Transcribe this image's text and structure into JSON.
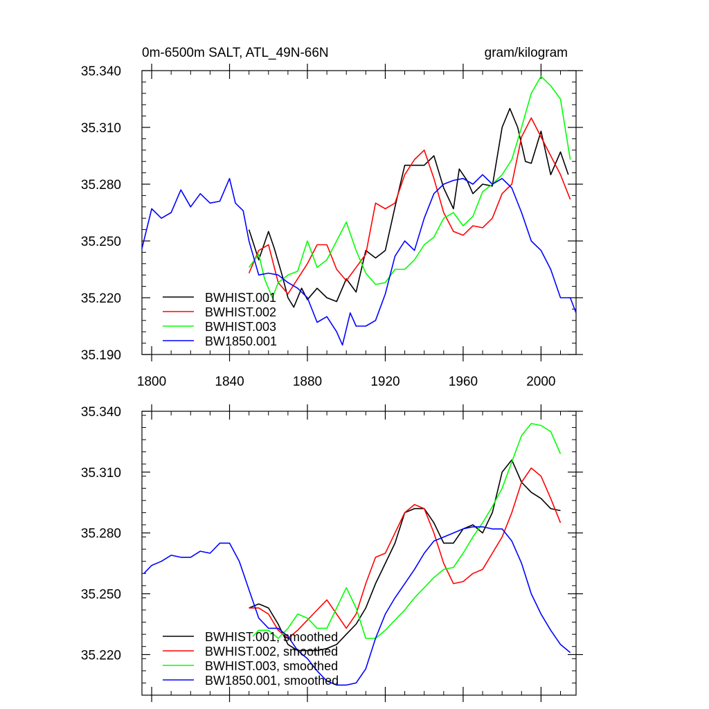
{
  "chart_data": [
    {
      "type": "line",
      "title": "0m-6500m SALT, ATL_49N-66N",
      "units": "gram/kilogram",
      "xlim": [
        1795,
        2018
      ],
      "ylim": [
        35.19,
        35.34
      ],
      "xticks": [
        1800,
        1840,
        1880,
        1920,
        1960,
        2000
      ],
      "xtick_labels": [
        "1800",
        "1840",
        "1880",
        "1920",
        "1960",
        "2000"
      ],
      "yticks": [
        35.19,
        35.22,
        35.25,
        35.28,
        35.31,
        35.34
      ],
      "ytick_labels": [
        "35.190",
        "35.220",
        "35.250",
        "35.280",
        "35.310",
        "35.340"
      ],
      "legend_position": "bottom-left",
      "series": [
        {
          "name": "BWHIST.001",
          "color": "#000000",
          "x": [
            1850,
            1855,
            1860,
            1863,
            1867,
            1870,
            1873,
            1877,
            1880,
            1885,
            1890,
            1895,
            1900,
            1905,
            1910,
            1915,
            1920,
            1925,
            1930,
            1935,
            1940,
            1945,
            1950,
            1955,
            1958,
            1962,
            1965,
            1970,
            1975,
            1980,
            1984,
            1988,
            1992,
            1995,
            2000,
            2005,
            2010,
            2014
          ],
          "y": [
            35.256,
            35.24,
            35.255,
            35.246,
            35.232,
            35.22,
            35.215,
            35.225,
            35.219,
            35.225,
            35.22,
            35.218,
            35.23,
            35.223,
            35.245,
            35.241,
            35.245,
            35.268,
            35.29,
            35.29,
            35.29,
            35.295,
            35.278,
            35.267,
            35.288,
            35.282,
            35.275,
            35.28,
            35.279,
            35.31,
            35.32,
            35.31,
            35.292,
            35.291,
            35.308,
            35.285,
            35.297,
            35.285
          ]
        },
        {
          "name": "BWHIST.002",
          "color": "#ff0000",
          "x": [
            1850,
            1855,
            1860,
            1865,
            1870,
            1875,
            1880,
            1885,
            1890,
            1895,
            1900,
            1905,
            1910,
            1915,
            1920,
            1925,
            1930,
            1935,
            1940,
            1945,
            1950,
            1955,
            1960,
            1965,
            1970,
            1975,
            1980,
            1985,
            1990,
            1995,
            2000,
            2005,
            2010,
            2015
          ],
          "y": [
            35.233,
            35.245,
            35.248,
            35.228,
            35.222,
            35.23,
            35.238,
            35.248,
            35.248,
            35.235,
            35.229,
            35.236,
            35.243,
            35.27,
            35.267,
            35.27,
            35.285,
            35.293,
            35.298,
            35.283,
            35.265,
            35.255,
            35.253,
            35.258,
            35.257,
            35.262,
            35.275,
            35.28,
            35.305,
            35.315,
            35.305,
            35.295,
            35.285,
            35.272
          ]
        },
        {
          "name": "BWHIST.003",
          "color": "#00ff00",
          "x": [
            1850,
            1855,
            1858,
            1862,
            1865,
            1870,
            1875,
            1880,
            1885,
            1890,
            1895,
            1900,
            1905,
            1910,
            1915,
            1920,
            1925,
            1930,
            1935,
            1940,
            1945,
            1950,
            1955,
            1960,
            1965,
            1970,
            1975,
            1980,
            1985,
            1990,
            1995,
            2000,
            2005,
            2010,
            2015
          ],
          "y": [
            35.236,
            35.243,
            35.23,
            35.22,
            35.228,
            35.232,
            35.234,
            35.25,
            35.236,
            35.24,
            35.25,
            35.26,
            35.245,
            35.233,
            35.227,
            35.228,
            35.235,
            35.235,
            35.24,
            35.248,
            35.252,
            35.262,
            35.265,
            35.258,
            35.263,
            35.276,
            35.28,
            35.285,
            35.293,
            35.31,
            35.328,
            35.337,
            35.332,
            35.325,
            35.293
          ]
        },
        {
          "name": "BW1850.001",
          "color": "#0000ff",
          "x": [
            1795,
            1800,
            1805,
            1810,
            1815,
            1820,
            1825,
            1830,
            1835,
            1840,
            1843,
            1847,
            1850,
            1855,
            1860,
            1865,
            1870,
            1875,
            1880,
            1885,
            1890,
            1895,
            1898,
            1902,
            1905,
            1910,
            1915,
            1920,
            1925,
            1930,
            1935,
            1940,
            1945,
            1950,
            1955,
            1960,
            1965,
            1970,
            1975,
            1980,
            1985,
            1990,
            1995,
            2000,
            2005,
            2010,
            2015,
            2018
          ],
          "y": [
            35.246,
            35.267,
            35.262,
            35.265,
            35.277,
            35.268,
            35.275,
            35.27,
            35.271,
            35.283,
            35.27,
            35.266,
            35.25,
            35.232,
            35.233,
            35.232,
            35.228,
            35.225,
            35.22,
            35.207,
            35.21,
            35.202,
            35.195,
            35.212,
            35.205,
            35.205,
            35.208,
            35.222,
            35.242,
            35.25,
            35.245,
            35.262,
            35.275,
            35.28,
            35.282,
            35.283,
            35.28,
            35.285,
            35.28,
            35.283,
            35.278,
            35.265,
            35.25,
            35.245,
            35.235,
            35.22,
            35.22,
            35.212
          ]
        }
      ],
      "legend": [
        "BWHIST.001",
        "BWHIST.002",
        "BWHIST.003",
        "BW1850.001"
      ]
    },
    {
      "type": "line",
      "title": "",
      "xlim": [
        1795,
        2018
      ],
      "ylim": [
        35.2,
        35.34
      ],
      "xticks": [
        1800,
        1840,
        1880,
        1920,
        1960,
        2000
      ],
      "yticks": [
        35.22,
        35.25,
        35.28,
        35.31,
        35.34
      ],
      "ytick_labels": [
        "35.220",
        "35.250",
        "35.280",
        "35.310",
        "35.340"
      ],
      "legend_position": "bottom-left",
      "series": [
        {
          "name": "BWHIST.001, smoothed",
          "color": "#000000",
          "x": [
            1850,
            1855,
            1860,
            1865,
            1870,
            1875,
            1880,
            1885,
            1890,
            1895,
            1900,
            1905,
            1910,
            1915,
            1920,
            1925,
            1930,
            1935,
            1940,
            1945,
            1950,
            1955,
            1960,
            1965,
            1970,
            1975,
            1980,
            1985,
            1990,
            1995,
            2000,
            2005,
            2010
          ],
          "y": [
            35.243,
            35.245,
            35.243,
            35.235,
            35.225,
            35.222,
            35.222,
            35.222,
            35.223,
            35.225,
            35.23,
            35.235,
            35.243,
            35.255,
            35.265,
            35.275,
            35.29,
            35.292,
            35.292,
            35.285,
            35.275,
            35.275,
            35.282,
            35.284,
            35.28,
            35.29,
            35.31,
            35.316,
            35.305,
            35.3,
            35.297,
            35.292,
            35.291
          ]
        },
        {
          "name": "BWHIST.002, smoothed",
          "color": "#ff0000",
          "x": [
            1850,
            1855,
            1860,
            1865,
            1870,
            1875,
            1880,
            1885,
            1890,
            1895,
            1900,
            1905,
            1910,
            1915,
            1920,
            1925,
            1930,
            1935,
            1940,
            1945,
            1950,
            1955,
            1960,
            1965,
            1970,
            1975,
            1980,
            1985,
            1990,
            1995,
            2000,
            2005,
            2010
          ],
          "y": [
            35.243,
            35.243,
            35.24,
            35.232,
            35.228,
            35.232,
            35.237,
            35.242,
            35.247,
            35.24,
            35.233,
            35.24,
            35.255,
            35.268,
            35.27,
            35.28,
            35.29,
            35.294,
            35.292,
            35.28,
            35.265,
            35.255,
            35.256,
            35.26,
            35.262,
            35.27,
            35.278,
            35.29,
            35.305,
            35.312,
            35.308,
            35.297,
            35.285
          ]
        },
        {
          "name": "BWHIST.003, smoothed",
          "color": "#00ff00",
          "x": [
            1852,
            1855,
            1860,
            1865,
            1870,
            1875,
            1880,
            1885,
            1890,
            1895,
            1900,
            1905,
            1910,
            1915,
            1920,
            1925,
            1930,
            1935,
            1940,
            1945,
            1950,
            1955,
            1960,
            1965,
            1970,
            1975,
            1980,
            1985,
            1990,
            1995,
            2000,
            2005,
            2010
          ],
          "y": [
            35.229,
            35.232,
            35.232,
            35.228,
            35.233,
            35.24,
            35.238,
            35.233,
            35.233,
            35.243,
            35.253,
            35.243,
            35.228,
            35.228,
            35.232,
            35.237,
            35.242,
            35.248,
            35.253,
            35.258,
            35.262,
            35.263,
            35.27,
            35.278,
            35.285,
            35.293,
            35.302,
            35.315,
            35.328,
            35.334,
            35.333,
            35.33,
            35.319
          ]
        },
        {
          "name": "BW1850.001, smoothed",
          "color": "#0000ff",
          "x": [
            1796,
            1800,
            1805,
            1810,
            1815,
            1820,
            1825,
            1830,
            1835,
            1840,
            1845,
            1850,
            1855,
            1860,
            1865,
            1870,
            1875,
            1880,
            1885,
            1890,
            1895,
            1900,
            1905,
            1910,
            1915,
            1920,
            1925,
            1930,
            1935,
            1940,
            1945,
            1950,
            1955,
            1960,
            1965,
            1970,
            1975,
            1980,
            1985,
            1990,
            1995,
            2000,
            2005,
            2010,
            2015
          ],
          "y": [
            35.26,
            35.264,
            35.266,
            35.269,
            35.268,
            35.268,
            35.271,
            35.27,
            35.275,
            35.275,
            35.266,
            35.252,
            35.238,
            35.233,
            35.233,
            35.229,
            35.222,
            35.218,
            35.212,
            35.207,
            35.205,
            35.205,
            35.206,
            35.213,
            35.228,
            35.24,
            35.248,
            35.255,
            35.262,
            35.27,
            35.276,
            35.278,
            35.28,
            35.282,
            35.283,
            35.283,
            35.282,
            35.282,
            35.276,
            35.265,
            35.25,
            35.24,
            35.232,
            35.225,
            35.221
          ]
        }
      ],
      "legend": [
        "BWHIST.001, smoothed",
        "BWHIST.002, smoothed",
        "BWHIST.003, smoothed",
        "BW1850.001, smoothed"
      ]
    }
  ]
}
